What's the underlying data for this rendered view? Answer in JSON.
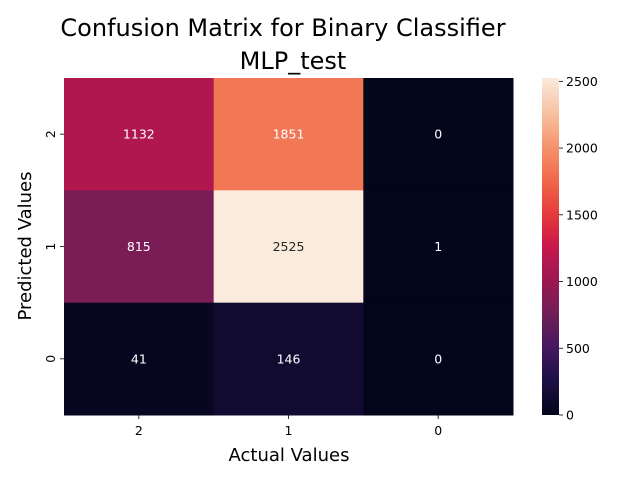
{
  "chart_data": {
    "type": "heatmap",
    "title": "Confusion Matrix for Binary Classifier",
    "subtitle": "MLP_test",
    "xlabel": "Actual Values",
    "ylabel": "Predicted Values",
    "x_categories": [
      "2",
      "1",
      "0"
    ],
    "y_categories": [
      "2",
      "1",
      "0"
    ],
    "values": [
      [
        1132,
        1851,
        0
      ],
      [
        815,
        2525,
        1
      ],
      [
        41,
        146,
        0
      ]
    ],
    "colorbar": {
      "min": 0,
      "max": 2525,
      "ticks": [
        0,
        500,
        1000,
        1500,
        2000,
        2500
      ],
      "colormap": "rocket"
    }
  }
}
